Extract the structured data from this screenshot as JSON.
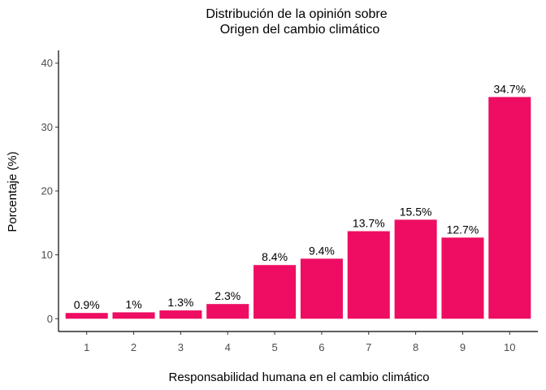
{
  "chart_data": {
    "type": "bar",
    "title": [
      "Distribución de la opinión sobre",
      "Origen del cambio climático"
    ],
    "xlabel": "Responsabilidad humana en el cambio climático",
    "ylabel": "Porcentaje (%)",
    "categories": [
      "1",
      "2",
      "3",
      "4",
      "5",
      "6",
      "7",
      "8",
      "9",
      "10"
    ],
    "values": [
      0.9,
      1.0,
      1.3,
      2.3,
      8.4,
      9.4,
      13.7,
      15.5,
      12.7,
      34.7
    ],
    "data_labels": [
      "0.9%",
      "1%",
      "1.3%",
      "2.3%",
      "8.4%",
      "9.4%",
      "13.7%",
      "15.5%",
      "12.7%",
      "34.7%"
    ],
    "ylim": [
      -2,
      42
    ],
    "yticks": [
      0,
      10,
      20,
      30,
      40
    ],
    "bar_color": "#EE0D62",
    "grid": false,
    "legend": "none"
  }
}
